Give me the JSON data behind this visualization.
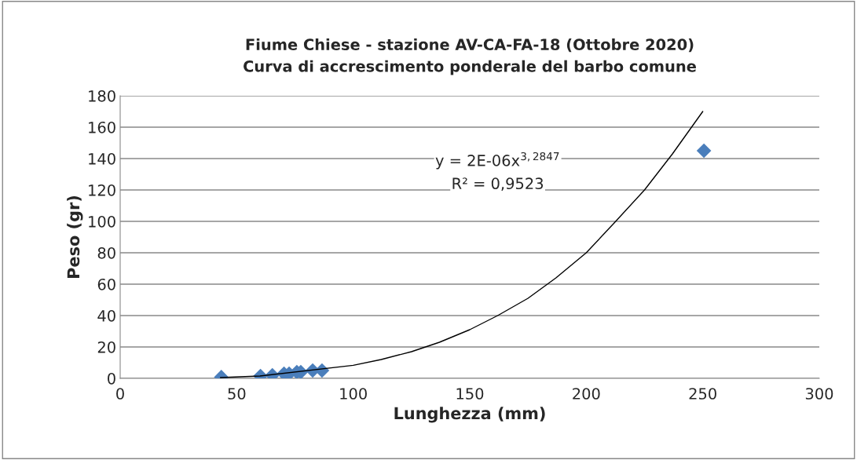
{
  "chart_data": {
    "type": "scatter",
    "title": "Fiume Chiese - stazione AV-CA-FA-18 (Ottobre 2020)\nCurva di accrescimento ponderale del barbo comune",
    "xlabel": "Lunghezza (mm)",
    "ylabel": "Peso (gr)",
    "annotations": [
      "y = 2E-06x$^{3,2847}$",
      "R² = 0,9523"
    ],
    "series": [
      {
        "color": "#4a7ebb",
        "marker": "diamond",
        "x": [
          43.4,
          60.2,
          65.3,
          70.3,
          72.5,
          75.8,
          77.5,
          82.6,
          86.6,
          250.5
        ],
        "values": [
          0.8,
          1.5,
          2,
          3,
          3,
          4,
          4,
          5,
          5,
          145
        ]
      },
      {
        "type": "line",
        "color": "#000000",
        "line_style": "solid",
        "x": [
          43,
          60,
          100,
          112,
          125,
          137,
          150,
          162,
          175,
          187,
          200,
          212,
          225,
          237,
          250
        ],
        "values": [
          0.5,
          1.5,
          8.3,
          12,
          17,
          23,
          31,
          40,
          51,
          64,
          80,
          99,
          120,
          143,
          170
        ]
      }
    ],
    "xlim": [
      0,
      300
    ],
    "xticks": [
      0,
      50,
      100,
      150,
      200,
      250,
      300
    ],
    "ylim": [
      0,
      180
    ],
    "yticks": [
      0,
      20,
      40,
      60,
      80,
      100,
      120,
      140,
      160,
      180
    ],
    "grid": "y",
    "legend": false
  }
}
